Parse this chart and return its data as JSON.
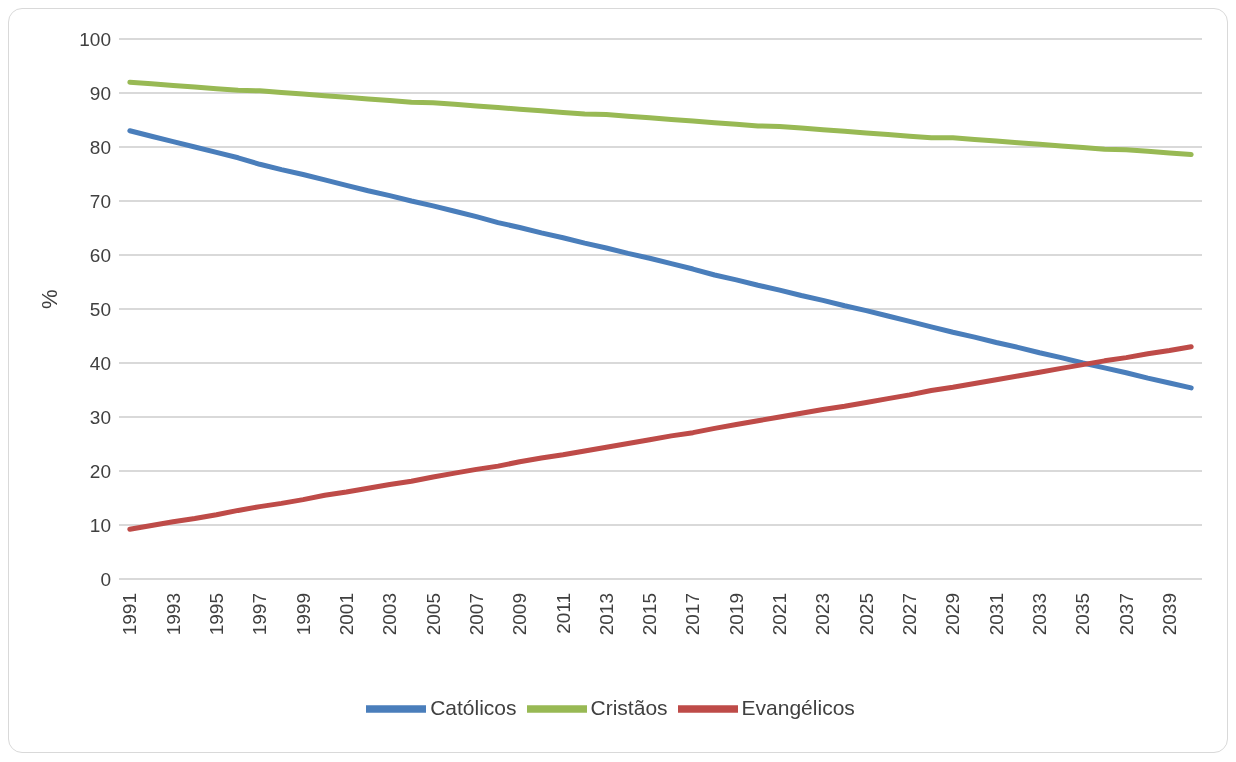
{
  "chart_data": {
    "type": "line",
    "ylabel": "%",
    "categories": [
      "1991",
      null,
      "1993",
      null,
      "1995",
      null,
      "1997",
      null,
      "1999",
      null,
      "2001",
      null,
      "2003",
      null,
      "2005",
      null,
      "2007",
      null,
      "2009",
      null,
      "2011",
      null,
      "2013",
      null,
      "2015",
      null,
      "2017",
      null,
      "2019",
      null,
      "2021",
      null,
      "2023",
      null,
      "2025",
      null,
      "2027",
      null,
      "2029",
      null,
      "2031",
      null,
      "2033",
      null,
      "2035",
      null,
      "2037",
      null,
      "2039",
      null
    ],
    "series": [
      {
        "name": "Católicos",
        "color": "#4a7ebb",
        "values": [
          83,
          82,
          81,
          80,
          79,
          78,
          76.8,
          75.8,
          74.9,
          73.9,
          72.9,
          71.9,
          71.0,
          70.0,
          69.1,
          68.1,
          67.1,
          66.0,
          65.1,
          64.1,
          63.2,
          62.2,
          61.3,
          60.3,
          59.4,
          58.4,
          57.4,
          56.3,
          55.4,
          54.4,
          53.5,
          52.5,
          51.6,
          50.6,
          49.7,
          48.7,
          47.7,
          46.7,
          45.7,
          44.8,
          43.8,
          42.9,
          41.9,
          41.0,
          40.0,
          39.1,
          38.2,
          37.2,
          36.3,
          35.4
        ]
      },
      {
        "name": "Evangélicos",
        "color": "#be4b48",
        "values": [
          9.2,
          9.9,
          10.6,
          11.2,
          11.9,
          12.7,
          13.4,
          14.0,
          14.7,
          15.5,
          16.1,
          16.8,
          17.5,
          18.1,
          18.9,
          19.6,
          20.3,
          20.9,
          21.7,
          22.4,
          23.0,
          23.7,
          24.4,
          25.1,
          25.8,
          26.5,
          27.1,
          27.9,
          28.6,
          29.3,
          30.0,
          30.7,
          31.4,
          32.0,
          32.7,
          33.4,
          34.1,
          34.9,
          35.5,
          36.2,
          36.9,
          37.6,
          38.3,
          39.0,
          39.7,
          40.4,
          41.0,
          41.7,
          42.3,
          43.0
        ]
      },
      {
        "name": "Cristãos",
        "color": "#98b954",
        "values": [
          92.0,
          91.7,
          91.4,
          91.1,
          90.8,
          90.5,
          90.4,
          90.1,
          89.8,
          89.5,
          89.2,
          88.9,
          88.6,
          88.3,
          88.2,
          87.9,
          87.6,
          87.3,
          87.0,
          86.7,
          86.4,
          86.1,
          86.0,
          85.7,
          85.4,
          85.1,
          84.8,
          84.5,
          84.2,
          83.9,
          83.8,
          83.5,
          83.2,
          82.9,
          82.6,
          82.3,
          82.0,
          81.7,
          81.7,
          81.4,
          81.1,
          80.8,
          80.5,
          80.2,
          79.9,
          79.6,
          79.5,
          79.2,
          78.9,
          78.6
        ]
      }
    ],
    "ylim": [
      0,
      100
    ],
    "yticks": [
      0,
      10,
      20,
      30,
      40,
      50,
      60,
      70,
      80,
      90,
      100
    ],
    "grid": "y",
    "legend": "bottom",
    "marker": "none",
    "line_style": "solid"
  }
}
